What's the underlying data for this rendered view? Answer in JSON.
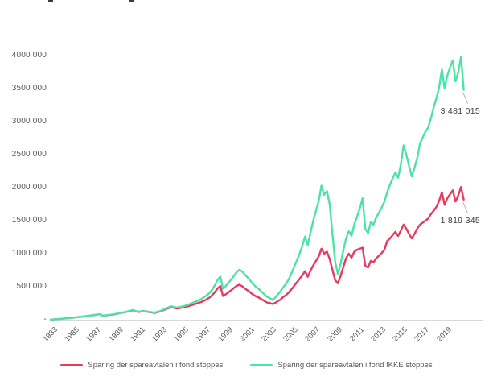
{
  "chart_data": {
    "type": "line",
    "title": "",
    "xlabel": "",
    "ylabel": "",
    "grid": false,
    "legend_position": "bottom",
    "xlim": [
      1983,
      2021
    ],
    "ylim": [
      0,
      4000000
    ],
    "x_ticks": [
      "1983",
      "1985",
      "1987",
      "1989",
      "1991",
      "1993",
      "1995",
      "1997",
      "1999",
      "2001",
      "2003",
      "2005",
      "2007",
      "2009",
      "2011",
      "2013",
      "2015",
      "2017",
      "2019"
    ],
    "y_ticks": [
      {
        "value": 4000000,
        "label": "4000 000"
      },
      {
        "value": 3500000,
        "label": "3500 000"
      },
      {
        "value": 3000000,
        "label": "3000 000"
      },
      {
        "value": 2500000,
        "label": "2500 000"
      },
      {
        "value": 2000000,
        "label": "2000 000"
      },
      {
        "value": 1500000,
        "label": "1500 000"
      },
      {
        "value": 1000000,
        "label": "1000 000"
      },
      {
        "value": 500000,
        "label": "500 000"
      },
      {
        "value": 0,
        "label": "-"
      }
    ],
    "x": [
      1983,
      1983.5,
      1984,
      1984.5,
      1985,
      1985.5,
      1986,
      1986.5,
      1987,
      1987.5,
      1987.75,
      1988.25,
      1988.75,
      1989.25,
      1989.75,
      1990.25,
      1990.5,
      1991,
      1991.5,
      1992,
      1992.5,
      1993,
      1993.5,
      1994,
      1994.5,
      1995,
      1995.5,
      1996,
      1996.25,
      1996.5,
      1996.75,
      1997,
      1997.25,
      1997.5,
      1997.75,
      1998,
      1998.25,
      1998.5,
      1998.75,
      1999,
      1999.25,
      1999.5,
      1999.75,
      2000,
      2000.25,
      2000.5,
      2000.75,
      2001,
      2001.25,
      2001.5,
      2001.75,
      2002,
      2002.25,
      2002.5,
      2002.75,
      2003,
      2003.25,
      2003.5,
      2003.75,
      2004,
      2004.25,
      2004.5,
      2004.75,
      2005,
      2005.25,
      2005.5,
      2005.75,
      2006,
      2006.25,
      2006.5,
      2006.75,
      2007,
      2007.25,
      2007.5,
      2007.75,
      2008,
      2008.25,
      2008.5,
      2008.75,
      2009,
      2009.25,
      2009.5,
      2009.75,
      2010,
      2010.25,
      2010.5,
      2010.75,
      2011,
      2011.25,
      2011.5,
      2011.75,
      2012,
      2012.25,
      2012.5,
      2012.75,
      2013,
      2013.25,
      2013.5,
      2013.75,
      2014,
      2014.25,
      2014.5,
      2014.75,
      2015,
      2015.25,
      2015.5,
      2015.75,
      2016,
      2016.25,
      2016.5,
      2016.75,
      2017,
      2017.25,
      2017.5,
      2017.75,
      2018,
      2018.25,
      2018.5,
      2018.75,
      2019,
      2019.25,
      2019.5,
      2019.75,
      2020,
      2020.25,
      2020.5,
      2020.75
    ],
    "series": [
      {
        "name": "Sparing der spareavtalen i fond stoppes",
        "color": "#e8395f",
        "values": [
          2000,
          8000,
          15000,
          22000,
          31000,
          40000,
          50000,
          60000,
          71000,
          84000,
          61000,
          70000,
          81000,
          96000,
          113000,
          132000,
          144000,
          117000,
          130000,
          116000,
          102000,
          126000,
          159000,
          192000,
          171000,
          182000,
          201000,
          228000,
          241000,
          255000,
          268000,
          287000,
          309000,
          334000,
          371000,
          417000,
          474000,
          511000,
          360000,
          385000,
          417000,
          448000,
          482000,
          512000,
          530000,
          508000,
          472000,
          445000,
          412000,
          380000,
          355000,
          338000,
          313000,
          288000,
          262000,
          254000,
          240000,
          253000,
          280000,
          306000,
          344000,
          372000,
          411000,
          460000,
          512000,
          567000,
          618000,
          672000,
          737000,
          650000,
          745000,
          825000,
          890000,
          960000,
          1076000,
          1000000,
          1030000,
          920000,
          760000,
          600000,
          552000,
          660000,
          800000,
          930000,
          1000000,
          940000,
          1030000,
          1060000,
          1075000,
          1090000,
          820000,
          790000,
          890000,
          870000,
          930000,
          970000,
          1010000,
          1060000,
          1190000,
          1230000,
          1280000,
          1330000,
          1270000,
          1350000,
          1440000,
          1380000,
          1300000,
          1230000,
          1300000,
          1380000,
          1440000,
          1470000,
          1500000,
          1530000,
          1600000,
          1650000,
          1710000,
          1800000,
          1930000,
          1740000,
          1840000,
          1900000,
          1960000,
          1790000,
          1880000,
          2010000,
          1819345
        ]
      },
      {
        "name": "Sparing der spareavtalen i fond IKKE stoppes",
        "color": "#4de3a6",
        "values": [
          2000,
          8000,
          15000,
          22000,
          31000,
          40000,
          50000,
          60000,
          72000,
          85000,
          62000,
          71000,
          83000,
          98000,
          116000,
          136000,
          148000,
          121000,
          135000,
          121000,
          107000,
          132000,
          168000,
          205000,
          184000,
          200000,
          224000,
          258000,
          275000,
          294000,
          312000,
          340000,
          370000,
          405000,
          455000,
          520000,
          600000,
          655000,
          470000,
          510000,
          560000,
          610000,
          665000,
          720000,
          758000,
          730000,
          680000,
          640000,
          590000,
          540000,
          500000,
          470000,
          430000,
          390000,
          350000,
          330000,
          300000,
          330000,
          380000,
          430000,
          490000,
          540000,
          610000,
          700000,
          800000,
          900000,
          1000000,
          1120000,
          1260000,
          1130000,
          1320000,
          1500000,
          1650000,
          1800000,
          2030000,
          1890000,
          1950000,
          1750000,
          1310000,
          880000,
          690000,
          850000,
          1050000,
          1230000,
          1340000,
          1270000,
          1440000,
          1560000,
          1680000,
          1840000,
          1380000,
          1310000,
          1480000,
          1440000,
          1550000,
          1620000,
          1700000,
          1790000,
          1930000,
          2040000,
          2140000,
          2230000,
          2150000,
          2350000,
          2640000,
          2500000,
          2330000,
          2170000,
          2300000,
          2450000,
          2670000,
          2760000,
          2850000,
          2910000,
          3050000,
          3220000,
          3350000,
          3520000,
          3790000,
          3500000,
          3700000,
          3820000,
          3930000,
          3610000,
          3750000,
          3980000,
          3481015
        ]
      }
    ],
    "annotations": [
      {
        "series": 1,
        "text": "3 481 015"
      },
      {
        "series": 0,
        "text": "1 819 345"
      }
    ],
    "axis_color": "#d9d9d9",
    "leader_color": "#a6a6a6"
  }
}
